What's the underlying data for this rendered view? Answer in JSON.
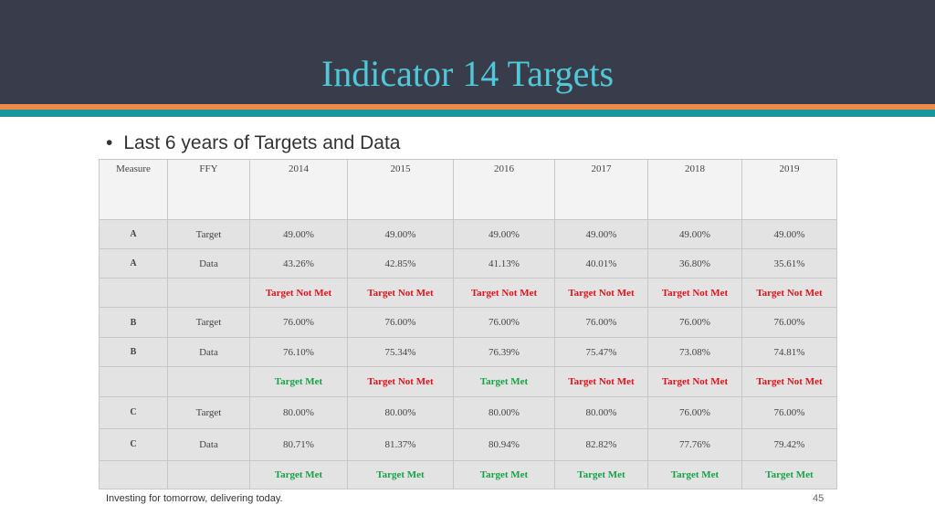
{
  "slide": {
    "title": "Indicator 14 Targets",
    "bullet": "Last 6 years of Targets and Data",
    "footer": "Investing for tomorrow, delivering today.",
    "page_number": "45"
  },
  "table": {
    "headers": [
      "Measure",
      "FFY",
      "2014",
      "2015",
      "2016",
      "2017",
      "2018",
      "2019"
    ],
    "rows": [
      {
        "measure": "A",
        "ffy": "Target",
        "values": [
          "49.00%",
          "49.00%",
          "49.00%",
          "49.00%",
          "49.00%",
          "49.00%"
        ]
      },
      {
        "measure": "A",
        "ffy": "Data",
        "values": [
          "43.26%",
          "42.85%",
          "41.13%",
          "40.01%",
          "36.80%",
          "35.61%"
        ]
      },
      {
        "measure": "",
        "ffy": "",
        "values": [
          "Target Not Met",
          "Target Not Met",
          "Target Not Met",
          "Target Not Met",
          "Target Not Met",
          "Target Not Met"
        ],
        "status": [
          false,
          false,
          false,
          false,
          false,
          false
        ]
      },
      {
        "measure": "B",
        "ffy": "Target",
        "values": [
          "76.00%",
          "76.00%",
          "76.00%",
          "76.00%",
          "76.00%",
          "76.00%"
        ]
      },
      {
        "measure": "B",
        "ffy": "Data",
        "values": [
          "76.10%",
          "75.34%",
          "76.39%",
          "75.47%",
          "73.08%",
          "74.81%"
        ]
      },
      {
        "measure": "",
        "ffy": "",
        "values": [
          "Target Met",
          "Target Not Met",
          "Target Met",
          "Target Not Met",
          "Target Not Met",
          "Target Not Met"
        ],
        "status": [
          true,
          false,
          true,
          false,
          false,
          false
        ]
      },
      {
        "measure": "C",
        "ffy": "Target",
        "values": [
          "80.00%",
          "80.00%",
          "80.00%",
          "80.00%",
          "76.00%",
          "76.00%"
        ]
      },
      {
        "measure": "C",
        "ffy": "Data",
        "values": [
          "80.71%",
          "81.37%",
          "80.94%",
          "82.82%",
          "77.76%",
          "79.42%"
        ]
      },
      {
        "measure": "",
        "ffy": "",
        "values": [
          "Target Met",
          "Target Met",
          "Target Met",
          "Target Met",
          "Target Met",
          "Target Met"
        ],
        "status": [
          true,
          true,
          true,
          true,
          true,
          true
        ]
      }
    ]
  },
  "colors": {
    "header_bg": "#393c4b",
    "title": "#4fc8d8",
    "accent_orange": "#f08a4b",
    "accent_teal": "#17979a",
    "met": "#17a24a",
    "not_met": "#e3121a"
  }
}
